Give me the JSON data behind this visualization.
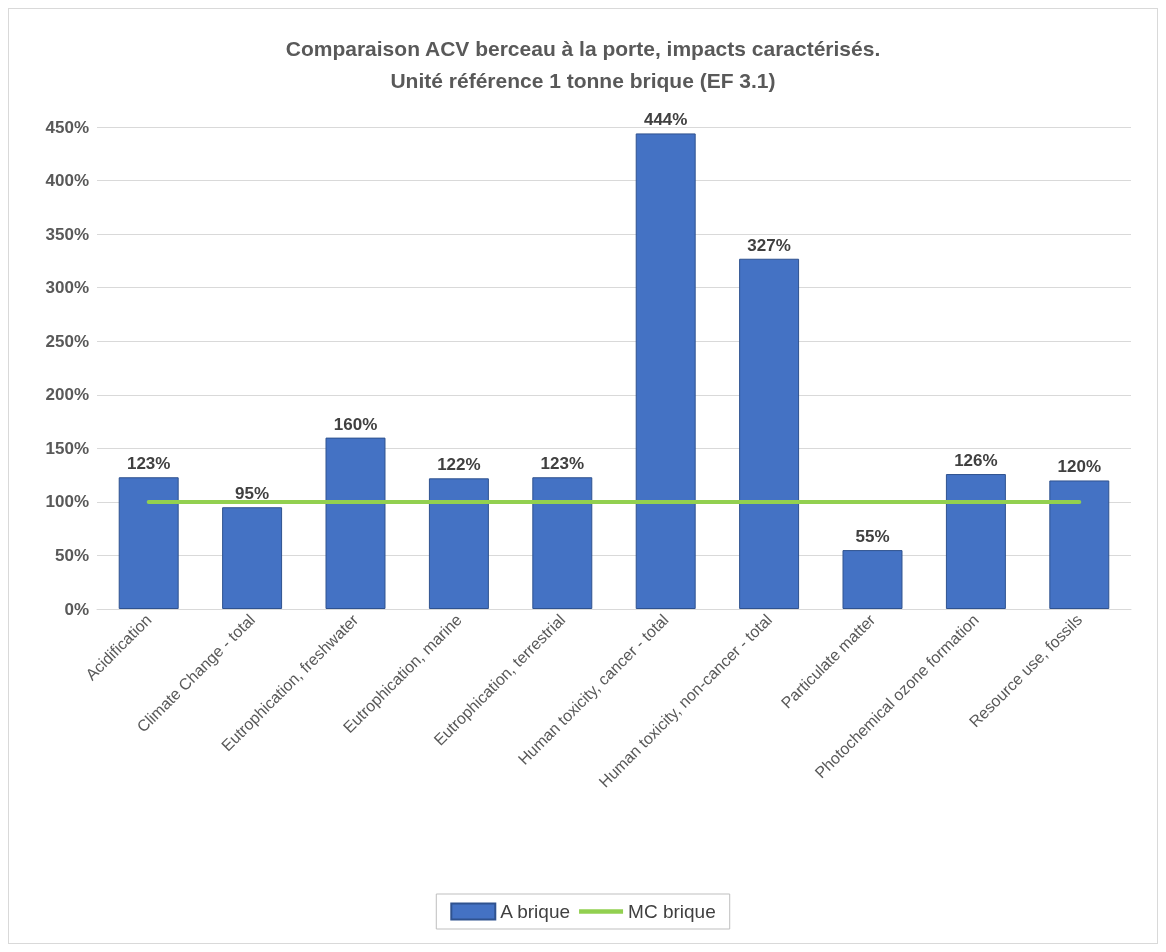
{
  "chart_data": {
    "type": "bar",
    "title": "Comparaison ACV berceau à la porte, impacts caractérisés.\nUnité référence 1 tonne brique (EF 3.1)",
    "categories": [
      "Acidification",
      "Climate Change - total",
      "Eutrophication, freshwater",
      "Eutrophication, marine",
      "Eutrophication, terrestrial",
      "Human toxicity, cancer - total",
      "Human toxicity, non-cancer - total",
      "Particulate matter",
      "Photochemical ozone formation",
      "Resource use, fossils"
    ],
    "series": [
      {
        "name": "A brique",
        "color": "#4472c4",
        "values": [
          123,
          95,
          160,
          122,
          123,
          444,
          327,
          55,
          126,
          120
        ],
        "value_labels": [
          "123%",
          "95%",
          "160%",
          "122%",
          "123%",
          "444%",
          "327%",
          "55%",
          "126%",
          "120%"
        ]
      },
      {
        "name": "MC brique",
        "type": "line",
        "color": "#92d050",
        "marker": "none",
        "values": [
          100,
          100,
          100,
          100,
          100,
          100,
          100,
          100,
          100,
          100
        ]
      }
    ],
    "ylim": [
      0,
      450
    ],
    "yticks": [
      {
        "value": 0,
        "label": "0%"
      },
      {
        "value": 50,
        "label": "50%"
      },
      {
        "value": 100,
        "label": "100%"
      },
      {
        "value": 150,
        "label": "150%"
      },
      {
        "value": 200,
        "label": "200%"
      },
      {
        "value": 250,
        "label": "250%"
      },
      {
        "value": 300,
        "label": "300%"
      },
      {
        "value": 350,
        "label": "350%"
      },
      {
        "value": 400,
        "label": "400%"
      },
      {
        "value": 450,
        "label": "450%"
      }
    ],
    "grid": "y",
    "legend": "bottom"
  }
}
